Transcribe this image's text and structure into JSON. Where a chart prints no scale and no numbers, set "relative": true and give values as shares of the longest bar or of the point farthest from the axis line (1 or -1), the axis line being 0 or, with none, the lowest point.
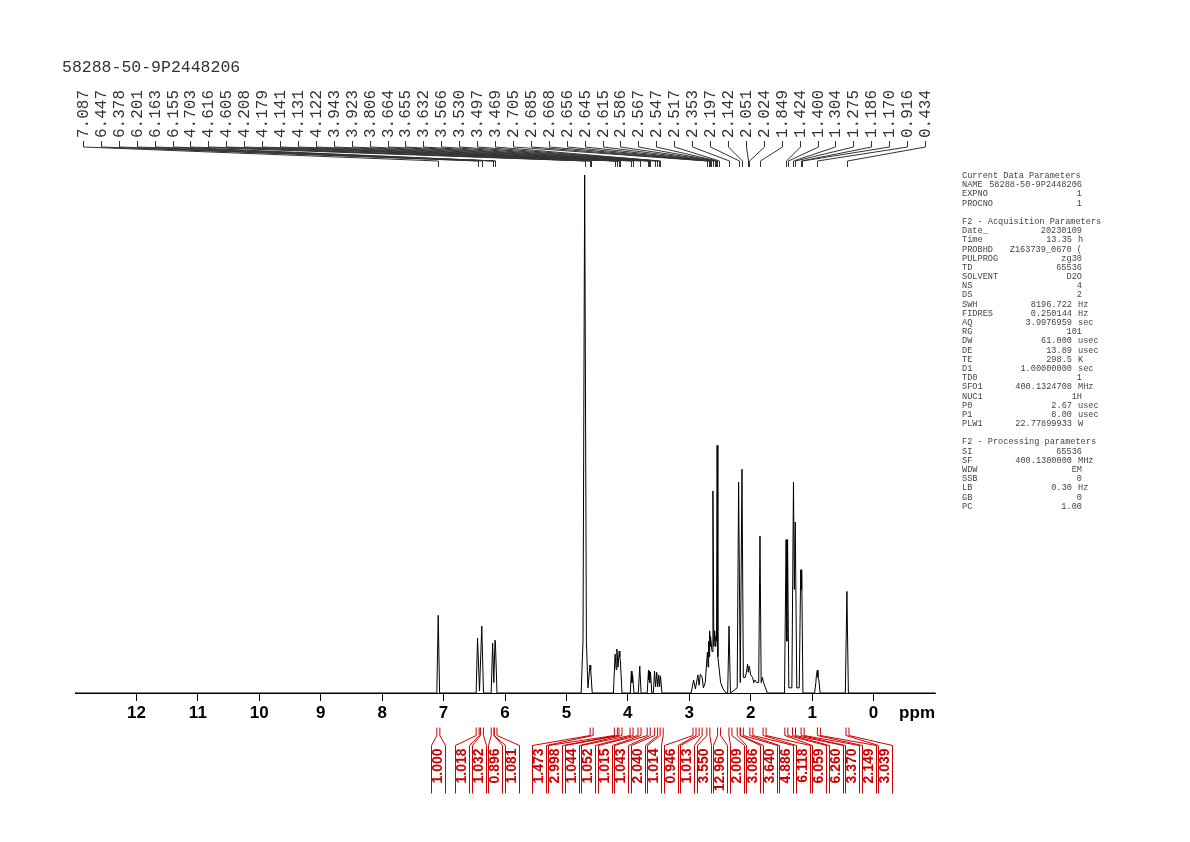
{
  "chart_data": {
    "type": "line",
    "title": "58288-50-9P2448206",
    "xlabel": "ppm",
    "relative": true,
    "xlim": [
      13,
      -1
    ],
    "xticks": [
      12,
      11,
      10,
      9,
      8,
      7,
      6,
      5,
      4,
      3,
      2,
      1,
      0
    ],
    "series": [
      {
        "color": "#000000",
        "x": [
          13.0,
          7.11,
          7.087,
          7.065,
          6.47,
          6.447,
          6.415,
          6.378,
          6.35,
          6.225,
          6.201,
          6.182,
          6.163,
          6.155,
          6.13,
          4.76,
          4.73,
          4.703,
          4.675,
          4.65,
          4.616,
          4.605,
          4.58,
          4.235,
          4.208,
          4.19,
          4.179,
          4.16,
          4.141,
          4.131,
          4.122,
          4.095,
          3.96,
          3.943,
          3.933,
          3.923,
          3.9,
          3.83,
          3.806,
          3.785,
          3.685,
          3.664,
          3.66,
          3.655,
          3.645,
          3.632,
          3.61,
          3.585,
          3.566,
          3.548,
          3.53,
          3.514,
          3.497,
          3.483,
          3.469,
          3.445,
          2.97,
          2.93,
          2.9,
          2.86,
          2.84,
          2.82,
          2.79,
          2.77,
          2.74,
          2.705,
          2.695,
          2.685,
          2.675,
          2.668,
          2.662,
          2.656,
          2.645,
          2.63,
          2.615,
          2.6,
          2.586,
          2.575,
          2.567,
          2.557,
          2.547,
          2.535,
          2.517,
          2.49,
          2.45,
          2.4,
          2.375,
          2.353,
          2.33,
          2.22,
          2.197,
          2.17,
          2.142,
          2.12,
          2.09,
          2.07,
          2.051,
          2.04,
          2.024,
          2.0,
          1.97,
          1.95,
          1.93,
          1.9,
          1.87,
          1.849,
          1.83,
          1.81,
          1.79,
          1.76,
          1.73,
          1.45,
          1.424,
          1.412,
          1.4,
          1.38,
          1.33,
          1.304,
          1.29,
          1.275,
          1.25,
          1.21,
          1.186,
          1.178,
          1.17,
          1.15,
          0.96,
          0.94,
          0.93,
          0.916,
          0.905,
          0.89,
          0.87,
          0.46,
          0.434,
          0.41,
          -1.0
        ],
        "values": [
          0,
          0,
          0.15,
          0,
          0,
          0.106,
          0.004,
          0.129,
          0,
          0,
          0.096,
          0.02,
          0.102,
          0.095,
          0,
          0,
          0.1,
          1,
          0.1,
          0.01,
          0.054,
          0.045,
          0,
          0,
          0.075,
          0.045,
          0.085,
          0.05,
          0.081,
          0.07,
          0.062,
          0,
          0,
          0.042,
          0.02,
          0.035,
          0,
          0,
          0.052,
          0,
          0,
          0.044,
          0.025,
          0.042,
          0.02,
          0.04,
          0,
          0,
          0.042,
          0.012,
          0.04,
          0.012,
          0.035,
          0.012,
          0.033,
          0,
          0,
          0.025,
          0.008,
          0.035,
          0.015,
          0.036,
          0.03,
          0.01,
          0.02,
          0.079,
          0.05,
          0.1,
          0.07,
          0.12,
          0.09,
          0.11,
          0.1,
          0.08,
          0.39,
          0.09,
          0.12,
          0.09,
          0.11,
          0.1,
          0.478,
          0.07,
          0.05,
          0.02,
          0.008,
          0,
          0,
          0.129,
          0,
          0.01,
          0.407,
          0.02,
          0.432,
          0.03,
          0.03,
          0.04,
          0.056,
          0.04,
          0.052,
          0.035,
          0.03,
          0.02,
          0.025,
          0.02,
          0.02,
          0.303,
          0.02,
          0.03,
          0.02,
          0.01,
          0,
          0,
          0.296,
          0.1,
          0.296,
          0.01,
          0.01,
          0.407,
          0.2,
          0.33,
          0.01,
          0.01,
          0.238,
          0.2,
          0.238,
          0,
          0,
          0.02,
          0.035,
          0.044,
          0.03,
          0.025,
          0,
          0,
          0.196,
          0,
          0
        ]
      }
    ],
    "annotations": [
      {
        "text": "7.087",
        "x": 7.087
      },
      {
        "text": "6.447",
        "x": 6.447
      },
      {
        "text": "6.378",
        "x": 6.378
      },
      {
        "text": "6.201",
        "x": 6.201
      },
      {
        "text": "6.163",
        "x": 6.163
      },
      {
        "text": "6.155",
        "x": 6.155
      },
      {
        "text": "4.703",
        "x": 4.703
      },
      {
        "text": "4.616",
        "x": 4.616
      },
      {
        "text": "4.605",
        "x": 4.605
      },
      {
        "text": "4.208",
        "x": 4.208
      },
      {
        "text": "4.179",
        "x": 4.179
      },
      {
        "text": "4.141",
        "x": 4.141
      },
      {
        "text": "4.131",
        "x": 4.131
      },
      {
        "text": "4.122",
        "x": 4.122
      },
      {
        "text": "3.943",
        "x": 3.943
      },
      {
        "text": "3.923",
        "x": 3.923
      },
      {
        "text": "3.806",
        "x": 3.806
      },
      {
        "text": "3.664",
        "x": 3.664
      },
      {
        "text": "3.655",
        "x": 3.655
      },
      {
        "text": "3.632",
        "x": 3.632
      },
      {
        "text": "3.566",
        "x": 3.566
      },
      {
        "text": "3.530",
        "x": 3.53
      },
      {
        "text": "3.497",
        "x": 3.497
      },
      {
        "text": "3.469",
        "x": 3.469
      },
      {
        "text": "2.705",
        "x": 2.705
      },
      {
        "text": "2.685",
        "x": 2.685
      },
      {
        "text": "2.668",
        "x": 2.668
      },
      {
        "text": "2.656",
        "x": 2.656
      },
      {
        "text": "2.645",
        "x": 2.645
      },
      {
        "text": "2.615",
        "x": 2.615
      },
      {
        "text": "2.586",
        "x": 2.586
      },
      {
        "text": "2.567",
        "x": 2.567
      },
      {
        "text": "2.547",
        "x": 2.547
      },
      {
        "text": "2.517",
        "x": 2.517
      },
      {
        "text": "2.353",
        "x": 2.353
      },
      {
        "text": "2.197",
        "x": 2.197
      },
      {
        "text": "2.142",
        "x": 2.142
      },
      {
        "text": "2.051",
        "x": 2.051
      },
      {
        "text": "2.024",
        "x": 2.024
      },
      {
        "text": "1.849",
        "x": 1.849
      },
      {
        "text": "1.424",
        "x": 1.424
      },
      {
        "text": "1.400",
        "x": 1.4
      },
      {
        "text": "1.304",
        "x": 1.304
      },
      {
        "text": "1.275",
        "x": 1.275
      },
      {
        "text": "1.186",
        "x": 1.186
      },
      {
        "text": "1.170",
        "x": 1.17
      },
      {
        "text": "0.916",
        "x": 0.916
      },
      {
        "text": "0.434",
        "x": 0.434
      },
      {
        "text": "1.000",
        "x": 7.085
      },
      {
        "text": "1.018",
        "x": 6.445
      },
      {
        "text": "1.032",
        "x": 6.375
      },
      {
        "text": "0.896",
        "x": 6.2
      },
      {
        "text": "1.081",
        "x": 6.155
      },
      {
        "text": "1.473",
        "x": 4.59
      },
      {
        "text": "2.998",
        "x": 4.195
      },
      {
        "text": "1.044",
        "x": 4.12
      },
      {
        "text": "1.052",
        "x": 3.94
      },
      {
        "text": "1.015",
        "x": 3.81
      },
      {
        "text": "1.043",
        "x": 3.66
      },
      {
        "text": "2.040",
        "x": 3.54
      },
      {
        "text": "1.014",
        "x": 3.45
      },
      {
        "text": "0.946",
        "x": 2.915
      },
      {
        "text": "1.013",
        "x": 2.815
      },
      {
        "text": "3.550",
        "x": 2.69
      },
      {
        "text": "12.960",
        "x": 2.515
      },
      {
        "text": "2.009",
        "x": 2.33
      },
      {
        "text": "3.086",
        "x": 2.195
      },
      {
        "text": "3.640",
        "x": 2.145
      },
      {
        "text": "4.886",
        "x": 1.99
      },
      {
        "text": "6.118",
        "x": 1.775
      },
      {
        "text": "6.059",
        "x": 1.42
      },
      {
        "text": "6.260",
        "x": 1.295
      },
      {
        "text": "3.370",
        "x": 1.155
      },
      {
        "text": "2.149",
        "x": 0.89
      },
      {
        "text": "3.039",
        "x": 0.425
      },
      "Current Data Parameters",
      "NAME\t58288-50-9P2448206",
      "EXPNO\t1",
      "PROCNO\t1",
      "F2 - Acquisition Parameters",
      "Date_\t20230109",
      "Time\t13.35\th",
      "PROBHD\tZ163739_0670 (",
      "PULPROG\tzg30",
      "TD\t65536",
      "SOLVENT\tD2O",
      "NS\t4",
      "DS\t2",
      "SWH\t8196.722\tHz",
      "FIDRES\t0.250144\tHz",
      "AQ\t3.9976959\tsec",
      "RG\t101",
      "DW\t61.000\tusec",
      "DE\t13.89\tusec",
      "TE\t298.5\tK",
      "D1\t1.00000000\tsec",
      "TD0\t1",
      "SFO1\t400.1324708\tMHz",
      "NUC1\t1H",
      "P0\t2.67\tusec",
      "P1\t8.00\tusec",
      "PLW1\t22.77899933\tW",
      "F2 - Processing parameters",
      "SI\t65536",
      "SF\t400.1300000\tMHz",
      "WDW\tEM",
      "SSB\t0",
      "LB\t0.30\tHz",
      "GB\t0",
      "PC\t1.00"
    ]
  }
}
